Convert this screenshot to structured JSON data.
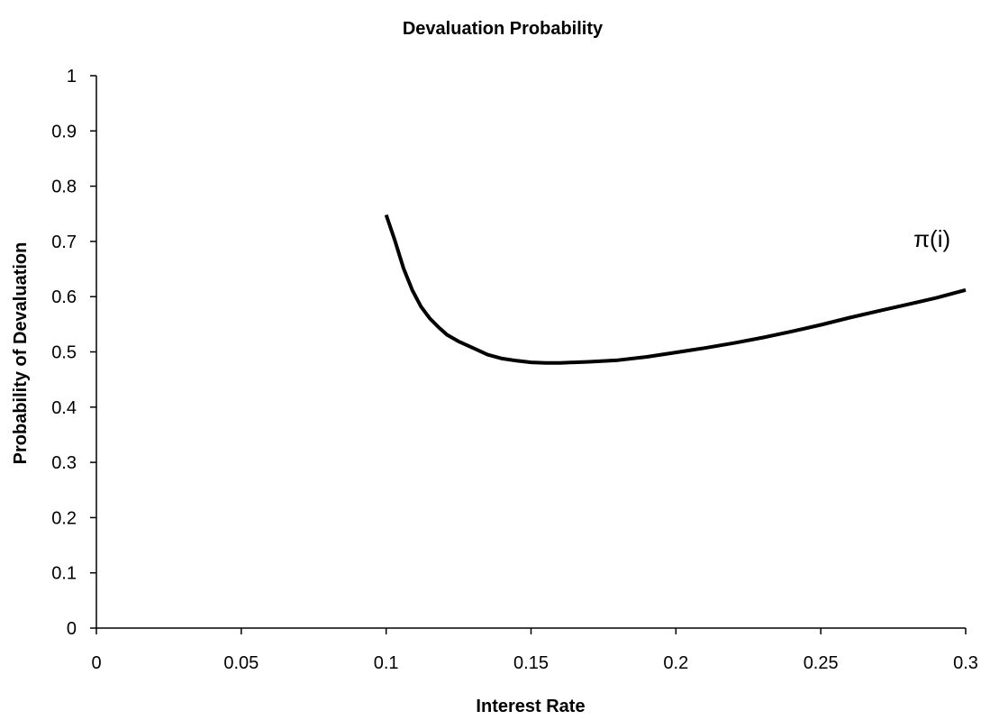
{
  "chart_data": {
    "type": "line",
    "title": "Devaluation Probability",
    "xlabel": "Interest Rate",
    "ylabel": "Probability of Devaluation",
    "xlim": [
      0,
      0.3
    ],
    "ylim": [
      0,
      1
    ],
    "x_ticks": [
      "0",
      "0.05",
      "0.1",
      "0.15",
      "0.2",
      "0.25",
      "0.3"
    ],
    "y_ticks": [
      "0",
      "0.1",
      "0.2",
      "0.3",
      "0.4",
      "0.5",
      "0.6",
      "0.7",
      "0.8",
      "0.9",
      "1"
    ],
    "grid": false,
    "annotation": {
      "text": "π(i)",
      "x": 0.282,
      "y": 0.705
    },
    "series": [
      {
        "color": "#000000",
        "x": [
          0.1,
          0.103,
          0.106,
          0.109,
          0.112,
          0.115,
          0.118,
          0.121,
          0.125,
          0.13,
          0.135,
          0.14,
          0.145,
          0.15,
          0.155,
          0.16,
          0.165,
          0.17,
          0.18,
          0.19,
          0.2,
          0.21,
          0.22,
          0.23,
          0.24,
          0.25,
          0.26,
          0.27,
          0.28,
          0.29,
          0.3
        ],
        "y": [
          0.748,
          0.702,
          0.651,
          0.612,
          0.582,
          0.561,
          0.545,
          0.531,
          0.519,
          0.507,
          0.495,
          0.488,
          0.484,
          0.481,
          0.48,
          0.48,
          0.481,
          0.482,
          0.485,
          0.491,
          0.499,
          0.507,
          0.516,
          0.526,
          0.537,
          0.549,
          0.562,
          0.574,
          0.586,
          0.598,
          0.612
        ]
      }
    ]
  }
}
